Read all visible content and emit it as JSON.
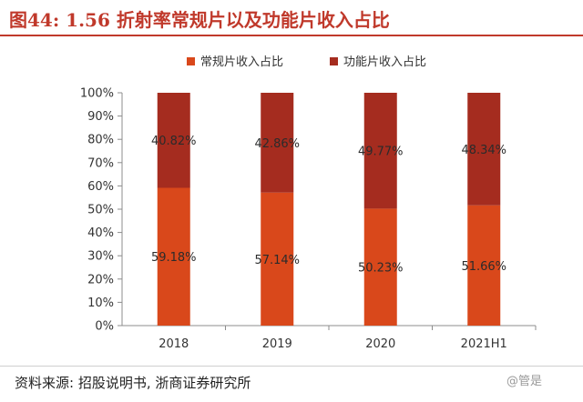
{
  "header": {
    "title": "图44:  1.56 折射率常规片以及功能片收入占比"
  },
  "footer": {
    "source": "资料来源:  招股说明书, 浙商证券研究所"
  },
  "watermark": {
    "text": "@管是"
  },
  "colors": {
    "conventional": "#d9481b",
    "functional": "#a52c1f",
    "title": "#c0392b"
  },
  "chart_data": {
    "type": "bar",
    "stacked": true,
    "categories": [
      "2018",
      "2019",
      "2020",
      "2021H1"
    ],
    "series": [
      {
        "name": "常规片收入占比",
        "values": [
          59.18,
          57.14,
          50.23,
          51.66
        ],
        "labels": [
          "59.18%",
          "57.14%",
          "50.23%",
          "51.66%"
        ],
        "color": "#d9481b"
      },
      {
        "name": "功能片收入占比",
        "values": [
          40.82,
          42.86,
          49.77,
          48.34
        ],
        "labels": [
          "40.82%",
          "42.86%",
          "49.77%",
          "48.34%"
        ],
        "color": "#a52c1f"
      }
    ],
    "ylim": [
      0,
      100
    ],
    "yticks": [
      "0%",
      "10%",
      "20%",
      "30%",
      "40%",
      "50%",
      "60%",
      "70%",
      "80%",
      "90%",
      "100%"
    ],
    "legend_position": "top-center",
    "grid": false
  }
}
